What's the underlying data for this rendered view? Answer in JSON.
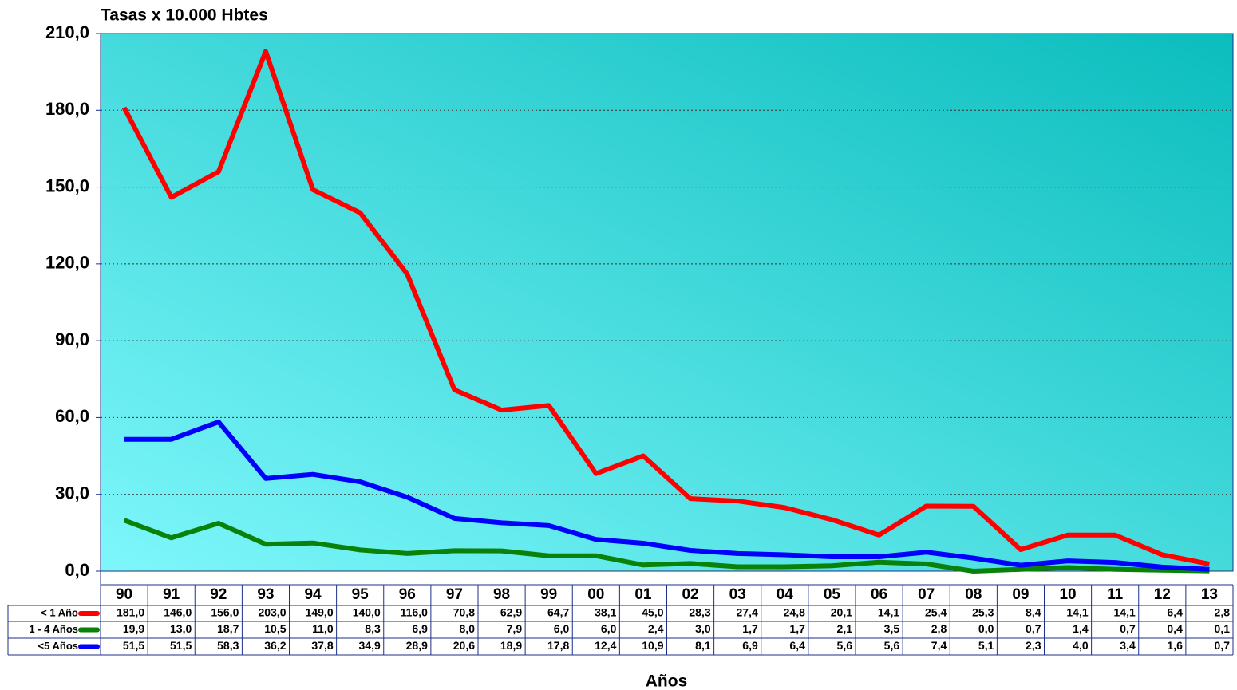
{
  "chart_data": {
    "type": "line",
    "title": "Tasas x 10.000 Hbtes",
    "x_label": "Años",
    "categories": [
      "90",
      "91",
      "92",
      "93",
      "94",
      "95",
      "96",
      "97",
      "98",
      "99",
      "00",
      "01",
      "02",
      "03",
      "04",
      "05",
      "06",
      "07",
      "08",
      "09",
      "10",
      "11",
      "12",
      "13"
    ],
    "series": [
      {
        "name": "< 1 Año",
        "color": "#ff0000",
        "values": [
          181.0,
          146.0,
          156.0,
          203.0,
          149.0,
          140.0,
          116.0,
          70.8,
          62.9,
          64.7,
          38.1,
          45.0,
          28.3,
          27.4,
          24.8,
          20.1,
          14.1,
          25.4,
          25.3,
          8.4,
          14.1,
          14.1,
          6.4,
          2.8
        ],
        "value_labels": [
          "181,0",
          "146,0",
          "156,0",
          "203,0",
          "149,0",
          "140,0",
          "116,0",
          "70,8",
          "62,9",
          "64,7",
          "38,1",
          "45,0",
          "28,3",
          "27,4",
          "24,8",
          "20,1",
          "14,1",
          "25,4",
          "25,3",
          "8,4",
          "14,1",
          "14,1",
          "6,4",
          "2,8"
        ]
      },
      {
        "name": "1 - 4 Años",
        "color": "#0a820a",
        "values": [
          19.9,
          13.0,
          18.7,
          10.5,
          11.0,
          8.3,
          6.9,
          8.0,
          7.9,
          6.0,
          6.0,
          2.4,
          3.0,
          1.7,
          1.7,
          2.1,
          3.5,
          2.8,
          0.0,
          0.7,
          1.4,
          0.7,
          0.4,
          0.1
        ],
        "value_labels": [
          "19,9",
          "13,0",
          "18,7",
          "10,5",
          "11,0",
          "8,3",
          "6,9",
          "8,0",
          "7,9",
          "6,0",
          "6,0",
          "2,4",
          "3,0",
          "1,7",
          "1,7",
          "2,1",
          "3,5",
          "2,8",
          "0,0",
          "0,7",
          "1,4",
          "0,7",
          "0,4",
          "0,1"
        ]
      },
      {
        "name": "<5 Años",
        "color": "#0000ff",
        "values": [
          51.5,
          51.5,
          58.3,
          36.2,
          37.8,
          34.9,
          28.9,
          20.6,
          18.9,
          17.8,
          12.4,
          10.9,
          8.1,
          6.9,
          6.4,
          5.6,
          5.6,
          7.4,
          5.1,
          2.3,
          4.0,
          3.4,
          1.6,
          0.7
        ],
        "value_labels": [
          "51,5",
          "51,5",
          "58,3",
          "36,2",
          "37,8",
          "34,9",
          "28,9",
          "20,6",
          "18,9",
          "17,8",
          "12,4",
          "10,9",
          "8,1",
          "6,9",
          "6,4",
          "5,6",
          "5,6",
          "7,4",
          "5,1",
          "2,3",
          "4,0",
          "3,4",
          "1,6",
          "0,7"
        ]
      }
    ],
    "ylim": [
      0,
      210
    ],
    "yticks": [
      {
        "value": 0,
        "label": "0,0"
      },
      {
        "value": 30,
        "label": "30,0"
      },
      {
        "value": 60,
        "label": "60,0"
      },
      {
        "value": 90,
        "label": "90,0"
      },
      {
        "value": 120,
        "label": "120,0"
      },
      {
        "value": 150,
        "label": "150,0"
      },
      {
        "value": 180,
        "label": "180,0"
      },
      {
        "value": 210,
        "label": "210,0"
      }
    ],
    "grid": true
  }
}
